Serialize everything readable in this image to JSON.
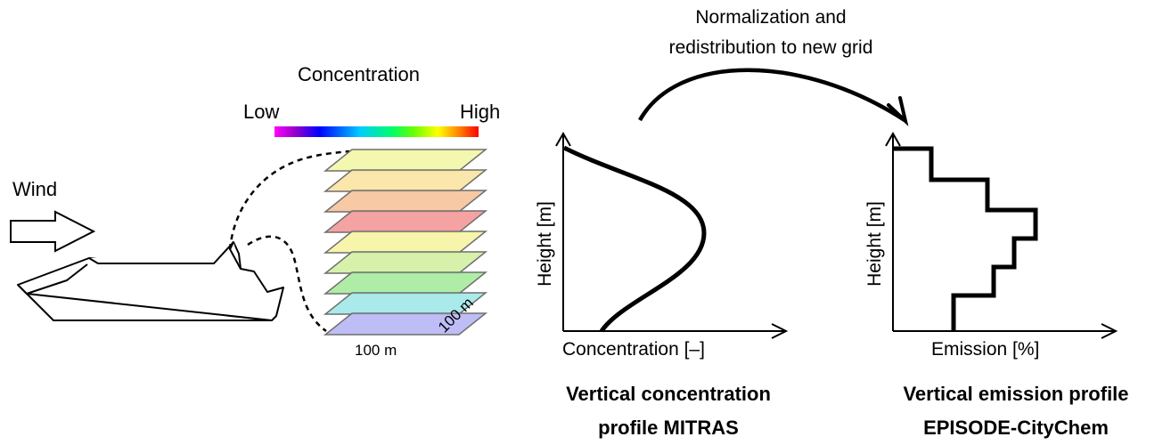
{
  "wind": {
    "label": "Wind"
  },
  "concentration_scale": {
    "title": "Concentration",
    "low_label": "Low",
    "high_label": "High",
    "gradient_colors": [
      "#ff00ff",
      "#0000ff",
      "#00ccff",
      "#00ff66",
      "#ffff00",
      "#ff8800",
      "#ff0000"
    ]
  },
  "grid_layers": {
    "colors": [
      "#f3f6a8",
      "#fbe4a4",
      "#f6c49c",
      "#f39a9a",
      "#f6f4a4",
      "#d4f0a4",
      "#a8eba0",
      "#a4e8e8",
      "#b9b7f5"
    ],
    "dimension_x": "100 m",
    "dimension_y": "100 m"
  },
  "transfer": {
    "line1": "Normalization and",
    "line2": "redistribution to new grid"
  },
  "left_plot": {
    "y_label": "Height [m]",
    "x_label": "Concentration [–]",
    "caption_line1": "Vertical concentration",
    "caption_line2": "profile  MITRAS"
  },
  "right_plot": {
    "y_label": "Height [m]",
    "x_label": "Emission [%]",
    "caption_line1": "Vertical emission profile",
    "caption_line2": "EPISODE-CityChem"
  }
}
